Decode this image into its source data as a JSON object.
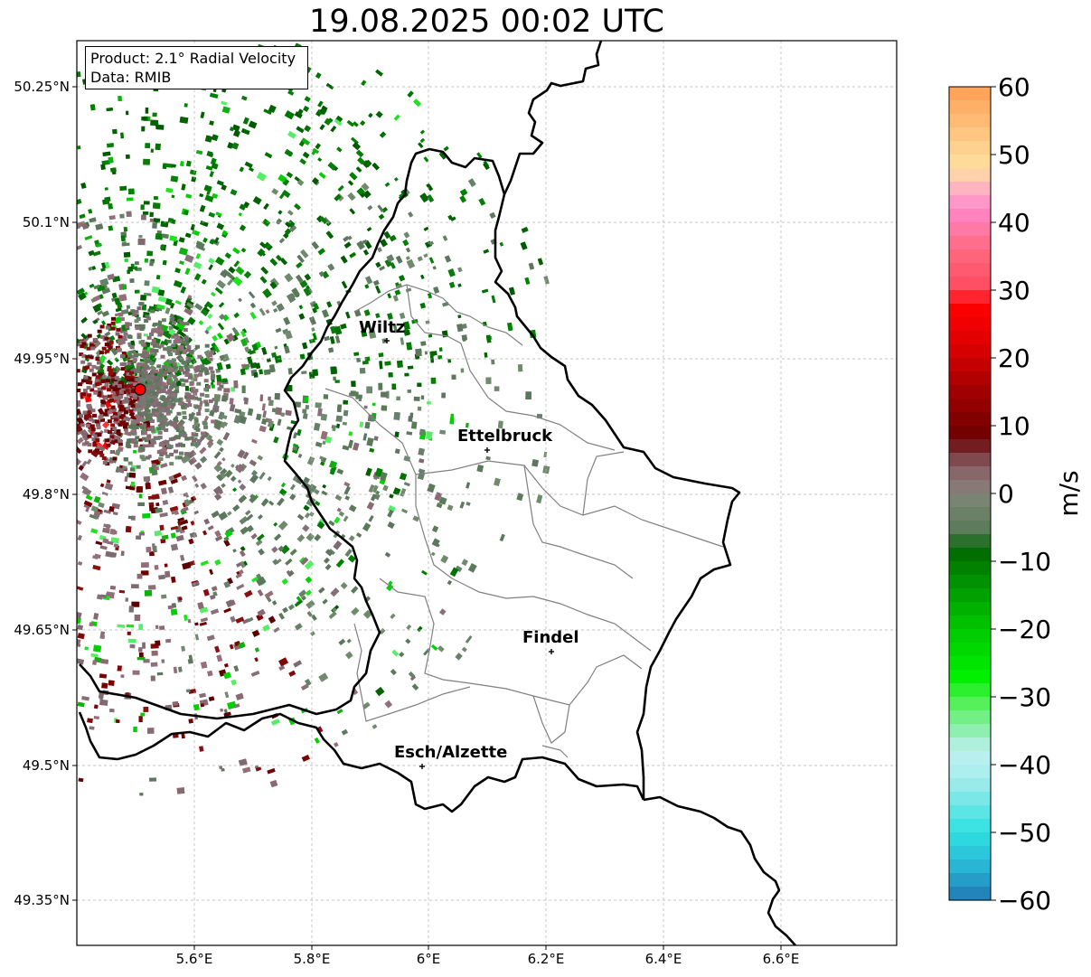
{
  "title": "19.08.2025 00:02 UTC",
  "info": {
    "product": "Product: 2.1° Radial Velocity",
    "data_source": "Data: RMIB"
  },
  "axes": {
    "lon_ticks": [
      "5.6°E",
      "5.8°E",
      "6°E",
      "6.2°E",
      "6.4°E",
      "6.6°E"
    ],
    "lat_ticks": [
      "50.25°N",
      "50.1°N",
      "49.95°N",
      "49.8°N",
      "49.65°N",
      "49.5°N",
      "49.35°N"
    ]
  },
  "cities": [
    {
      "name": "Wiltz"
    },
    {
      "name": "Ettelbruck"
    },
    {
      "name": "Findel"
    },
    {
      "name": "Esch/Alzette"
    }
  ],
  "colorbar": {
    "label": "m/s",
    "ticks": [
      "60",
      "50",
      "40",
      "30",
      "20",
      "10",
      "0",
      "−10",
      "−20",
      "−30",
      "−40",
      "−50",
      "−60"
    ],
    "min": -60,
    "max": 60,
    "colors": {
      "negative_high": "#1f77b4",
      "cyan": "#2ee0e0",
      "green_bright": "#00e600",
      "green_dark": "#006400",
      "neutral": "#8a7474",
      "red_dark": "#6e0000",
      "red_bright": "#ff0000",
      "pink": "#ff88cc",
      "orange": "#ff9f55"
    }
  },
  "colors": {
    "border": "#000000",
    "cantons": "#808080",
    "radar_site": "#ff0000",
    "grid": "#b0b0b0"
  }
}
